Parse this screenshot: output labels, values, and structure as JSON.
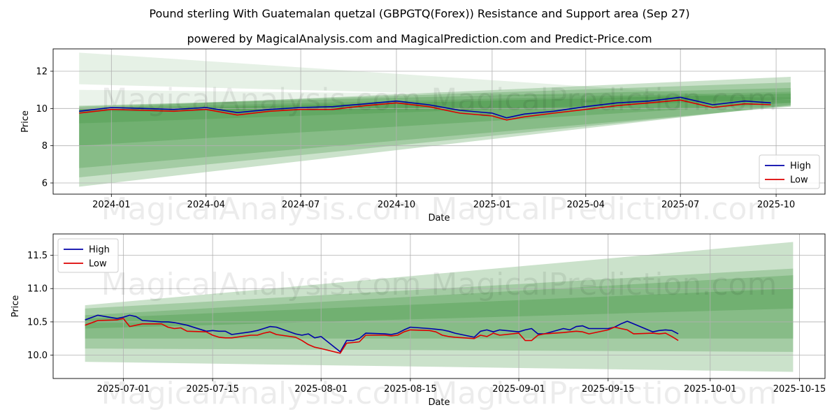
{
  "title": "Pound sterling With Guatemalan quetzal (GBPGTQ(Forex)) Resistance and Support area (Sep 27)",
  "subtitle": "powered by MagicalAnalysis.com and MagicalPrediction.com and Predict-Price.com",
  "watermark": "MagicalAnalysis.com   MagicalPrediction.com",
  "colors": {
    "high": "#0000aa",
    "low": "#dd0000",
    "band": "#2e8b2e",
    "grid": "#b0b0b0"
  },
  "chart_data": [
    {
      "type": "line",
      "xlabel": "Date",
      "ylabel": "Price",
      "x_ticks": [
        "2024-01",
        "2024-04",
        "2024-07",
        "2024-10",
        "2025-01",
        "2025-04",
        "2025-07",
        "2025-10"
      ],
      "y_ticks": [
        "6",
        "8",
        "10",
        "12"
      ],
      "ylim": [
        5.4,
        13.2
      ],
      "xlim": [
        "2023-11-06",
        "2025-11-17"
      ],
      "legend": {
        "position": "lower-right",
        "entries": [
          "High",
          "Low"
        ]
      },
      "grid": true,
      "series": [
        {
          "name": "High",
          "dates": [
            "2023-12-01",
            "2024-01-01",
            "2024-02-01",
            "2024-03-01",
            "2024-04-01",
            "2024-05-01",
            "2024-06-01",
            "2024-07-01",
            "2024-08-01",
            "2024-09-01",
            "2024-10-01",
            "2024-11-01",
            "2024-12-01",
            "2025-01-01",
            "2025-01-15",
            "2025-02-01",
            "2025-03-01",
            "2025-04-01",
            "2025-05-01",
            "2025-06-01",
            "2025-07-01",
            "2025-08-01",
            "2025-09-01",
            "2025-09-26"
          ],
          "values": [
            9.85,
            10.05,
            10.0,
            9.95,
            10.05,
            9.78,
            9.95,
            10.05,
            10.1,
            10.25,
            10.4,
            10.2,
            9.9,
            9.75,
            9.5,
            9.7,
            9.85,
            10.1,
            10.3,
            10.4,
            10.6,
            10.2,
            10.4,
            10.3
          ]
        },
        {
          "name": "Low",
          "dates": [
            "2023-12-01",
            "2024-01-01",
            "2024-02-01",
            "2024-03-01",
            "2024-04-01",
            "2024-05-01",
            "2024-06-01",
            "2024-07-01",
            "2024-08-01",
            "2024-09-01",
            "2024-10-01",
            "2024-11-01",
            "2024-12-01",
            "2025-01-01",
            "2025-01-15",
            "2025-02-01",
            "2025-03-01",
            "2025-04-01",
            "2025-05-01",
            "2025-06-01",
            "2025-07-01",
            "2025-08-01",
            "2025-09-01",
            "2025-09-26"
          ],
          "values": [
            9.75,
            9.95,
            9.9,
            9.85,
            9.95,
            9.65,
            9.85,
            9.95,
            9.95,
            10.15,
            10.3,
            10.1,
            9.75,
            9.6,
            9.38,
            9.55,
            9.75,
            9.95,
            10.15,
            10.3,
            10.45,
            10.05,
            10.25,
            10.2
          ]
        }
      ],
      "bands": [
        {
          "start_date": "2023-12-01",
          "end_date": "2025-10-15",
          "start": [
            11.3,
            13.0
          ],
          "end": [
            10.3,
            10.45
          ],
          "opacity": 0.12
        },
        {
          "start_date": "2023-12-01",
          "end_date": "2025-10-15",
          "start": [
            5.8,
            10.0
          ],
          "end": [
            10.2,
            11.7
          ],
          "opacity": 0.25
        },
        {
          "start_date": "2023-12-01",
          "end_date": "2025-10-15",
          "start": [
            6.3,
            10.1
          ],
          "end": [
            10.15,
            11.4
          ],
          "opacity": 0.25
        },
        {
          "start_date": "2023-12-01",
          "end_date": "2025-10-15",
          "start": [
            6.8,
            10.15
          ],
          "end": [
            10.1,
            11.1
          ],
          "opacity": 0.25
        },
        {
          "start_date": "2023-12-01",
          "end_date": "2025-10-15",
          "start": [
            8.0,
            9.9
          ],
          "end": [
            10.3,
            10.8
          ],
          "opacity": 0.25
        },
        {
          "start_date": "2023-12-01",
          "end_date": "2025-10-15",
          "start": [
            9.2,
            10.0
          ],
          "end": [
            10.5,
            10.9
          ],
          "opacity": 0.2
        },
        {
          "start_date": "2023-12-01",
          "end_date": "2025-10-15",
          "start": [
            9.8,
            11.0
          ],
          "end": [
            10.1,
            10.6
          ],
          "opacity": 0.1
        }
      ]
    },
    {
      "type": "line",
      "xlabel": "Date",
      "ylabel": "Price",
      "x_ticks": [
        "2025-07-01",
        "2025-07-15",
        "2025-08-01",
        "2025-08-15",
        "2025-09-01",
        "2025-09-15",
        "2025-10-01",
        "2025-10-15"
      ],
      "y_ticks": [
        "10.0",
        "10.5",
        "11.0",
        "11.5"
      ],
      "ylim": [
        9.65,
        11.82
      ],
      "xlim": [
        "2025-06-20",
        "2025-10-19"
      ],
      "legend": {
        "position": "upper-left",
        "entries": [
          "High",
          "Low"
        ]
      },
      "grid": true,
      "series": [
        {
          "name": "High",
          "dates": [
            "2025-06-25",
            "2025-06-27",
            "2025-06-30",
            "2025-07-01",
            "2025-07-02",
            "2025-07-03",
            "2025-07-04",
            "2025-07-07",
            "2025-07-08",
            "2025-07-09",
            "2025-07-10",
            "2025-07-11",
            "2025-07-14",
            "2025-07-15",
            "2025-07-16",
            "2025-07-17",
            "2025-07-18",
            "2025-07-21",
            "2025-07-22",
            "2025-07-23",
            "2025-07-24",
            "2025-07-25",
            "2025-07-28",
            "2025-07-29",
            "2025-07-30",
            "2025-07-31",
            "2025-08-01",
            "2025-08-04",
            "2025-08-05",
            "2025-08-06",
            "2025-08-07",
            "2025-08-08",
            "2025-08-11",
            "2025-08-12",
            "2025-08-13",
            "2025-08-14",
            "2025-08-15",
            "2025-08-18",
            "2025-08-19",
            "2025-08-20",
            "2025-08-21",
            "2025-08-22",
            "2025-08-25",
            "2025-08-26",
            "2025-08-27",
            "2025-08-28",
            "2025-08-29",
            "2025-09-01",
            "2025-09-02",
            "2025-09-03",
            "2025-09-04",
            "2025-09-05",
            "2025-09-08",
            "2025-09-09",
            "2025-09-10",
            "2025-09-11",
            "2025-09-12",
            "2025-09-15",
            "2025-09-16",
            "2025-09-17",
            "2025-09-18",
            "2025-09-19",
            "2025-09-22",
            "2025-09-23",
            "2025-09-24",
            "2025-09-25",
            "2025-09-26"
          ],
          "values": [
            10.53,
            10.6,
            10.55,
            10.57,
            10.6,
            10.58,
            10.52,
            10.5,
            10.5,
            10.49,
            10.47,
            10.45,
            10.36,
            10.37,
            10.36,
            10.36,
            10.31,
            10.35,
            10.37,
            10.4,
            10.43,
            10.42,
            10.32,
            10.3,
            10.32,
            10.26,
            10.28,
            10.05,
            10.22,
            10.22,
            10.25,
            10.33,
            10.32,
            10.31,
            10.33,
            10.38,
            10.42,
            10.4,
            10.39,
            10.38,
            10.36,
            10.33,
            10.27,
            10.36,
            10.38,
            10.35,
            10.38,
            10.35,
            10.38,
            10.4,
            10.32,
            10.32,
            10.4,
            10.38,
            10.43,
            10.44,
            10.4,
            10.4,
            10.42,
            10.47,
            10.51,
            10.47,
            10.35,
            10.37,
            10.38,
            10.37,
            10.32
          ]
        },
        {
          "name": "Low",
          "dates": [
            "2025-06-25",
            "2025-06-27",
            "2025-06-30",
            "2025-07-01",
            "2025-07-02",
            "2025-07-03",
            "2025-07-04",
            "2025-07-07",
            "2025-07-08",
            "2025-07-09",
            "2025-07-10",
            "2025-07-11",
            "2025-07-14",
            "2025-07-15",
            "2025-07-16",
            "2025-07-17",
            "2025-07-18",
            "2025-07-21",
            "2025-07-22",
            "2025-07-23",
            "2025-07-24",
            "2025-07-25",
            "2025-07-28",
            "2025-07-29",
            "2025-07-30",
            "2025-07-31",
            "2025-08-01",
            "2025-08-04",
            "2025-08-05",
            "2025-08-06",
            "2025-08-07",
            "2025-08-08",
            "2025-08-11",
            "2025-08-12",
            "2025-08-13",
            "2025-08-14",
            "2025-08-15",
            "2025-08-18",
            "2025-08-19",
            "2025-08-20",
            "2025-08-21",
            "2025-08-22",
            "2025-08-25",
            "2025-08-26",
            "2025-08-27",
            "2025-08-28",
            "2025-08-29",
            "2025-09-01",
            "2025-09-02",
            "2025-09-03",
            "2025-09-04",
            "2025-09-05",
            "2025-09-08",
            "2025-09-09",
            "2025-09-10",
            "2025-09-11",
            "2025-09-12",
            "2025-09-15",
            "2025-09-16",
            "2025-09-17",
            "2025-09-18",
            "2025-09-19",
            "2025-09-22",
            "2025-09-23",
            "2025-09-24",
            "2025-09-25",
            "2025-09-26"
          ],
          "values": [
            10.45,
            10.52,
            10.53,
            10.55,
            10.43,
            10.45,
            10.47,
            10.47,
            10.42,
            10.4,
            10.41,
            10.36,
            10.35,
            10.3,
            10.27,
            10.26,
            10.26,
            10.3,
            10.3,
            10.33,
            10.35,
            10.31,
            10.27,
            10.22,
            10.16,
            10.12,
            10.1,
            10.03,
            10.18,
            10.19,
            10.2,
            10.3,
            10.3,
            10.29,
            10.3,
            10.35,
            10.38,
            10.37,
            10.35,
            10.3,
            10.28,
            10.27,
            10.25,
            10.3,
            10.28,
            10.33,
            10.3,
            10.33,
            10.22,
            10.22,
            10.3,
            10.32,
            10.34,
            10.35,
            10.36,
            10.35,
            10.32,
            10.38,
            10.42,
            10.4,
            10.38,
            10.32,
            10.33,
            10.32,
            10.33,
            10.28,
            10.22
          ]
        }
      ],
      "bands": [
        {
          "start_date": "2025-06-25",
          "end_date": "2025-10-14",
          "start": [
            9.9,
            10.75
          ],
          "end": [
            9.75,
            11.7
          ],
          "opacity": 0.25
        },
        {
          "start_date": "2025-06-25",
          "end_date": "2025-10-14",
          "start": [
            10.1,
            10.7
          ],
          "end": [
            10.05,
            11.3
          ],
          "opacity": 0.25
        },
        {
          "start_date": "2025-06-25",
          "end_date": "2025-10-14",
          "start": [
            10.25,
            10.6
          ],
          "end": [
            10.25,
            11.2
          ],
          "opacity": 0.25
        },
        {
          "start_date": "2025-06-25",
          "end_date": "2025-10-14",
          "start": [
            10.4,
            10.55
          ],
          "end": [
            10.7,
            11.0
          ],
          "opacity": 0.25
        }
      ]
    }
  ]
}
